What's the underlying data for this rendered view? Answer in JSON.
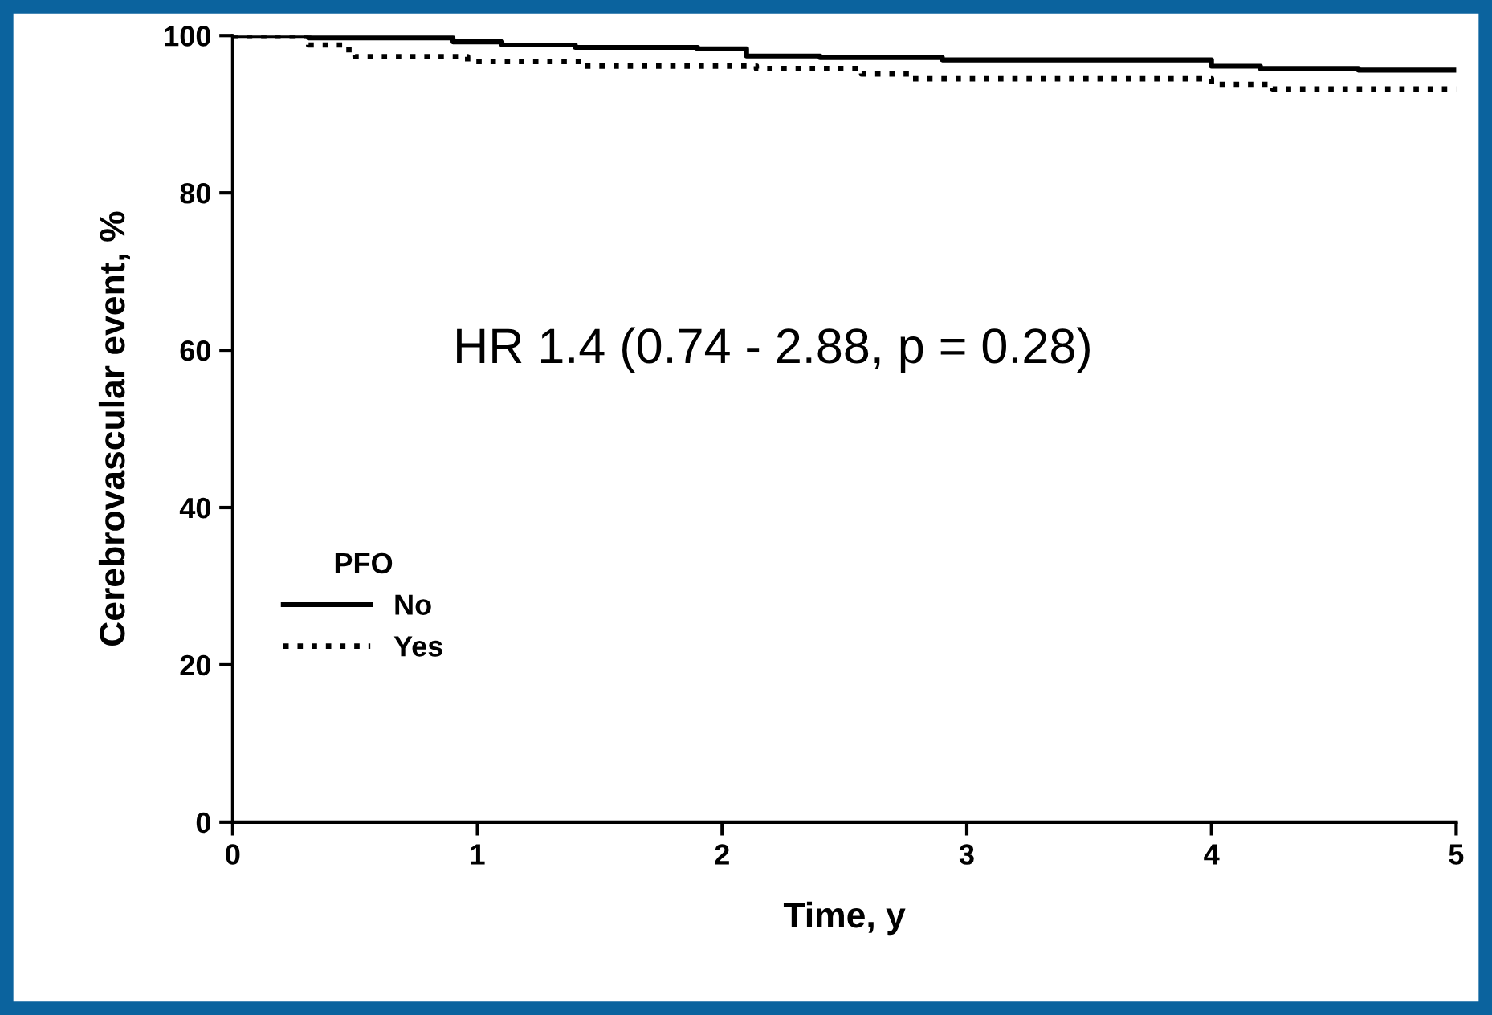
{
  "chart_data": {
    "type": "step",
    "xlabel": "Time, y",
    "ylabel": "Cerebrovascular event, %",
    "legend_title": "PFO",
    "xlim": [
      0,
      5
    ],
    "ylim": [
      0,
      100
    ],
    "xticks": [
      0,
      1,
      2,
      3,
      4,
      5
    ],
    "yticks": [
      0,
      20,
      40,
      60,
      80,
      100
    ],
    "grid": false,
    "legend": "bottom left",
    "marker": "none",
    "annotations": [
      "HR 1.4 (0.74 - 2.88, p = 0.28)"
    ],
    "series": [
      {
        "name": "No",
        "color": "#000000",
        "line_style": "solid",
        "x": [
          0,
          0.31,
          0.9,
          1.1,
          1.4,
          1.9,
          2.1,
          2.4,
          2.9,
          3.8,
          4.0,
          4.2,
          4.6,
          5.0
        ],
        "values": [
          100,
          99.7,
          99.2,
          98.8,
          98.5,
          98.3,
          97.4,
          97.2,
          96.9,
          96.9,
          96.1,
          95.8,
          95.6,
          95.6
        ]
      },
      {
        "name": "Yes",
        "color": "#000000",
        "line_style": "dotted",
        "x": [
          0,
          0.31,
          0.45,
          0.5,
          0.96,
          1.43,
          2.14,
          2.57,
          2.78,
          4.0,
          4.25,
          5.0
        ],
        "values": [
          100,
          98.8,
          98.2,
          97.3,
          96.7,
          96.1,
          95.8,
          95.1,
          94.5,
          93.8,
          93.2,
          93.2
        ]
      }
    ]
  }
}
